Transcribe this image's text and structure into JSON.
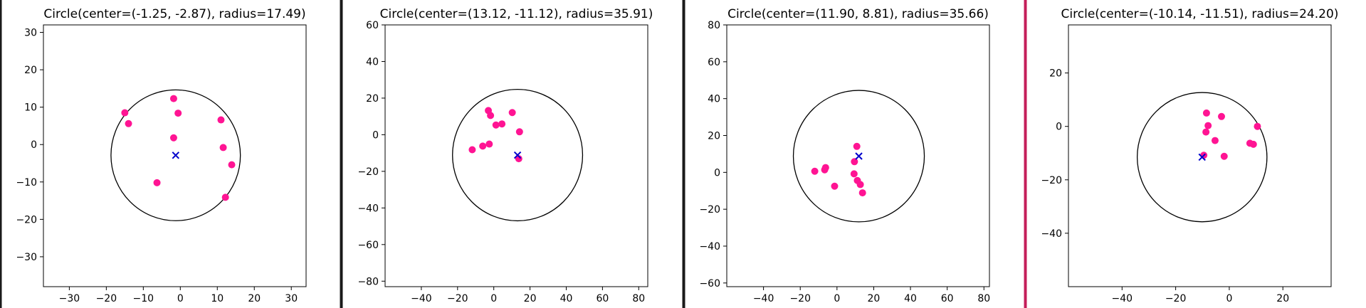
{
  "chart_data": [
    {
      "type": "scatter",
      "title": "Circle(center=(-1.25, -2.87), radius=17.49)",
      "circle": {
        "center": [
          -1.25,
          -2.87
        ],
        "radius": 17.49
      },
      "xlim": [
        -37,
        34
      ],
      "ylim": [
        -38,
        32
      ],
      "xticks": [
        -30,
        -20,
        -10,
        0,
        10,
        20,
        30
      ],
      "yticks": [
        -30,
        -20,
        -10,
        0,
        10,
        20,
        30
      ],
      "points": [
        [
          -1.8,
          12.3
        ],
        [
          -0.6,
          8.4
        ],
        [
          -15.0,
          8.5
        ],
        [
          -14.0,
          5.6
        ],
        [
          -1.8,
          1.8
        ],
        [
          11.0,
          6.6
        ],
        [
          11.6,
          -0.8
        ],
        [
          13.9,
          -5.4
        ],
        [
          -6.3,
          -10.2
        ],
        [
          12.2,
          -14.1
        ]
      ],
      "point_color": "#ff1493",
      "center_marker_color": "#0000cc"
    },
    {
      "type": "scatter",
      "title": "Circle(center=(13.12, -11.12), radius=35.91)",
      "circle": {
        "center": [
          13.12,
          -11.12
        ],
        "radius": 35.91
      },
      "xlim": [
        -60,
        85
      ],
      "ylim": [
        -83,
        60
      ],
      "xticks": [
        -40,
        -20,
        0,
        20,
        40,
        60,
        80
      ],
      "yticks": [
        -80,
        -60,
        -40,
        -20,
        0,
        20,
        40,
        60
      ],
      "points": [
        [
          -3.0,
          13.2
        ],
        [
          -1.8,
          10.5
        ],
        [
          10.2,
          12.1
        ],
        [
          1.2,
          5.3
        ],
        [
          4.5,
          5.9
        ],
        [
          14.2,
          1.6
        ],
        [
          -2.5,
          -5.1
        ],
        [
          -6.1,
          -6.2
        ],
        [
          -11.9,
          -8.2
        ],
        [
          13.8,
          -13.1
        ]
      ],
      "point_color": "#ff1493",
      "center_marker_color": "#0000cc"
    },
    {
      "type": "scatter",
      "title": "Circle(center=(11.90, 8.81), radius=35.66)",
      "circle": {
        "center": [
          11.9,
          8.81
        ],
        "radius": 35.66
      },
      "xlim": [
        -60,
        83
      ],
      "ylim": [
        -62,
        80
      ],
      "xticks": [
        -40,
        -20,
        0,
        20,
        40,
        60,
        80
      ],
      "yticks": [
        -60,
        -40,
        -20,
        0,
        20,
        40,
        60,
        80
      ],
      "points": [
        [
          10.8,
          14.1
        ],
        [
          9.5,
          5.8
        ],
        [
          -6.2,
          2.6
        ],
        [
          -6.7,
          1.4
        ],
        [
          -12.1,
          0.6
        ],
        [
          9.3,
          -0.8
        ],
        [
          11.1,
          -4.4
        ],
        [
          12.7,
          -6.6
        ],
        [
          -1.3,
          -7.5
        ],
        [
          13.9,
          -11.1
        ]
      ],
      "point_color": "#ff1493",
      "center_marker_color": "#0000cc"
    },
    {
      "type": "scatter",
      "title": "Circle(center=(-10.14, -11.51), radius=24.20)",
      "circle": {
        "center": [
          -10.14,
          -11.51
        ],
        "radius": 24.2
      },
      "xlim": [
        -60,
        38
      ],
      "ylim": [
        -60,
        38
      ],
      "xticks": [
        -40,
        -20,
        0,
        20
      ],
      "yticks": [
        -40,
        -20,
        0,
        20
      ],
      "points": [
        [
          -8.5,
          5.0
        ],
        [
          -2.9,
          3.7
        ],
        [
          -7.9,
          0.3
        ],
        [
          10.5,
          0.0
        ],
        [
          -8.7,
          -2.1
        ],
        [
          -5.3,
          -5.3
        ],
        [
          7.7,
          -6.3
        ],
        [
          9.0,
          -6.7
        ],
        [
          -1.9,
          -11.2
        ],
        [
          -9.5,
          -10.8
        ]
      ],
      "point_color": "#ff1493",
      "center_marker_color": "#0000cc"
    }
  ],
  "separators": [
    {
      "color": "#1a1a1a"
    },
    {
      "color": "#1a1a1a"
    },
    {
      "color": "#1a1a1a"
    },
    {
      "color": "#c41e5a"
    }
  ]
}
